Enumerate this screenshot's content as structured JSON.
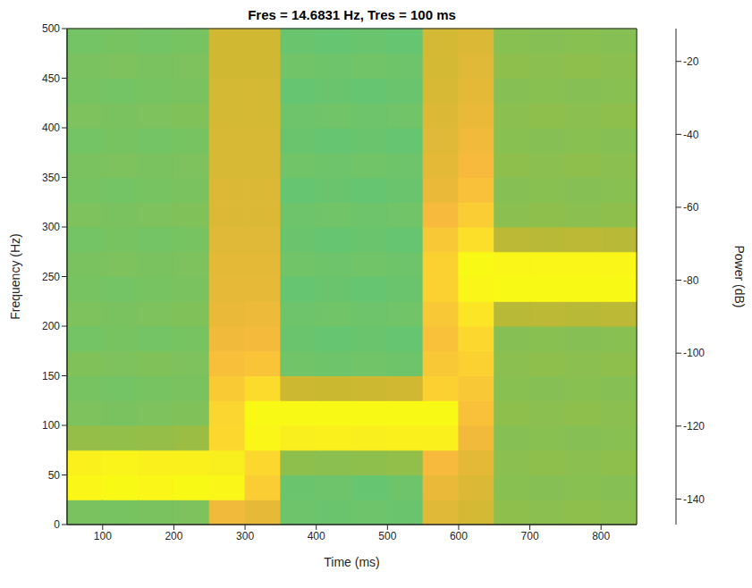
{
  "chart_data": {
    "type": "heatmap",
    "title": "Fres = 14.6831 Hz, Tres = 100 ms",
    "x_label": "Time (ms)",
    "y_label": "Frequency (Hz)",
    "xlim": [
      50,
      850
    ],
    "ylim": [
      0,
      500
    ],
    "xticks": [
      100,
      200,
      300,
      400,
      500,
      600,
      700,
      800
    ],
    "yticks": [
      0,
      50,
      100,
      150,
      200,
      250,
      300,
      350,
      400,
      450,
      500
    ],
    "cells": {
      "x_edges": [
        50,
        100,
        150,
        200,
        250,
        300,
        350,
        400,
        450,
        500,
        550,
        600,
        650,
        700,
        750,
        800,
        850
      ],
      "y_edges": [
        0,
        25,
        50,
        75,
        100,
        125,
        150,
        175,
        200,
        225,
        250,
        275,
        300,
        325,
        350,
        375,
        400,
        425,
        450,
        475,
        500
      ],
      "values": [
        [
          -75,
          -13,
          -15,
          -66,
          -74,
          -76,
          -73,
          -77,
          -74,
          -76,
          -75,
          -77,
          -74,
          -76,
          -75,
          -77,
          -74,
          -76,
          -75,
          -77
        ],
        [
          -76,
          -12,
          -14,
          -67,
          -75,
          -77,
          -74,
          -76,
          -75,
          -77,
          -74,
          -76,
          -75,
          -77,
          -74,
          -76,
          -75,
          -77,
          -74,
          -76
        ],
        [
          -75,
          -13,
          -15,
          -66,
          -74,
          -76,
          -73,
          -77,
          -74,
          -76,
          -75,
          -77,
          -74,
          -76,
          -75,
          -77,
          -74,
          -76,
          -75,
          -77
        ],
        [
          -74,
          -12,
          -15,
          -64,
          -73,
          -75,
          -74,
          -76,
          -73,
          -75,
          -74,
          -76,
          -73,
          -75,
          -74,
          -76,
          -73,
          -75,
          -74,
          -76
        ],
        [
          -40,
          -13,
          -16,
          -25,
          -26,
          -31,
          -36,
          -40,
          -42,
          -43,
          -44,
          -45,
          -46,
          -46,
          -47,
          -47,
          -48,
          -48,
          -49,
          -49
        ],
        [
          -43,
          -30,
          -25,
          -13,
          -12,
          -24,
          -34,
          -39,
          -41,
          -43,
          -44,
          -45,
          -46,
          -46,
          -47,
          -47,
          -48,
          -48,
          -49,
          -49
        ],
        [
          -79,
          -80,
          -68,
          -16,
          -12,
          -50,
          -78,
          -80,
          -79,
          -81,
          -78,
          -80,
          -79,
          -81,
          -78,
          -80,
          -79,
          -81,
          -78,
          -80
        ],
        [
          -80,
          -79,
          -69,
          -15,
          -12,
          -51,
          -79,
          -81,
          -78,
          -80,
          -79,
          -81,
          -78,
          -80,
          -79,
          -81,
          -78,
          -80,
          -79,
          -81
        ],
        [
          -79,
          -81,
          -68,
          -16,
          -12,
          -50,
          -78,
          -80,
          -79,
          -81,
          -78,
          -80,
          -79,
          -81,
          -78,
          -80,
          -79,
          -81,
          -78,
          -80
        ],
        [
          -80,
          -79,
          -67,
          -15,
          -12,
          -49,
          -79,
          -81,
          -78,
          -80,
          -79,
          -81,
          -78,
          -80,
          -79,
          -81,
          -78,
          -80,
          -79,
          -81
        ],
        [
          -45,
          -42,
          -38,
          -15,
          -12,
          -28,
          -32,
          -35,
          -32,
          -28,
          -28,
          -32,
          -38,
          -42,
          -44,
          -45,
          -46,
          -47,
          -48,
          -48
        ],
        [
          -48,
          -46,
          -44,
          -40,
          -35,
          -32,
          -28,
          -25,
          -20,
          -13,
          -12,
          -22,
          -30,
          -35,
          -38,
          -40,
          -42,
          -44,
          -45,
          -46
        ],
        [
          -68,
          -70,
          -69,
          -71,
          -68,
          -70,
          -69,
          -71,
          -56,
          -12,
          -13,
          -55,
          -69,
          -71,
          -68,
          -70,
          -69,
          -71,
          -68,
          -70
        ],
        [
          -69,
          -71,
          -68,
          -70,
          -69,
          -71,
          -68,
          -70,
          -55,
          -12,
          -13,
          -56,
          -68,
          -70,
          -69,
          -71,
          -68,
          -70,
          -69,
          -71
        ],
        [
          -68,
          -70,
          -69,
          -71,
          -68,
          -70,
          -69,
          -71,
          -56,
          -12,
          -13,
          -55,
          -69,
          -71,
          -68,
          -70,
          -69,
          -71,
          -68,
          -70
        ],
        [
          -69,
          -71,
          -68,
          -70,
          -69,
          -71,
          -68,
          -70,
          -55,
          -12,
          -13,
          -56,
          -68,
          -70,
          -69,
          -71,
          -68,
          -70,
          -69,
          -71
        ]
      ]
    },
    "colorbar": {
      "label": "Power (dB)",
      "lim": [
        -147,
        -11
      ],
      "ticks": [
        -140,
        -120,
        -100,
        -80,
        -60,
        -40,
        -20
      ]
    }
  }
}
